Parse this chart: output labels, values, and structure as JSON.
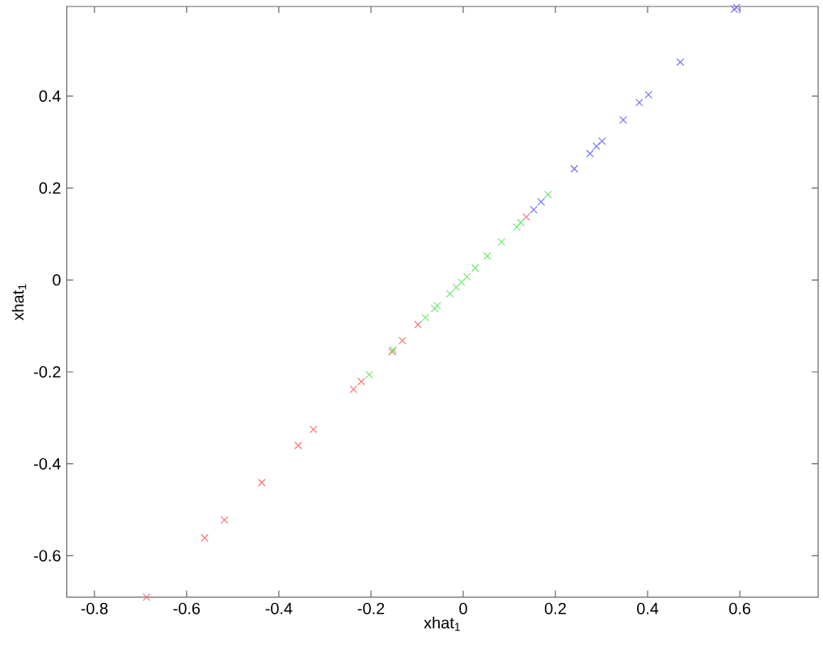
{
  "chart_data": {
    "type": "scatter",
    "xlabel": "xhat$_{1}$",
    "ylabel": "xhat$_{1}$",
    "xlim": [
      -0.86,
      0.77
    ],
    "ylim": [
      -0.69,
      0.595
    ],
    "xticks": [
      -0.8,
      -0.6,
      -0.4,
      -0.2,
      0,
      0.2,
      0.4,
      0.6
    ],
    "yticks": [
      -0.6,
      -0.4,
      -0.2,
      0,
      0.2,
      0.4
    ],
    "marker": "cross",
    "series": [
      {
        "color": "#ff7070",
        "x": [
          -0.687,
          -0.561,
          -0.518,
          -0.437,
          -0.358,
          -0.325,
          -0.238,
          -0.221,
          -0.154,
          -0.132,
          -0.098,
          0.137
        ],
        "values": [
          -0.69,
          -0.561,
          -0.522,
          -0.441,
          -0.36,
          -0.325,
          -0.238,
          -0.221,
          -0.156,
          -0.132,
          -0.097,
          0.137
        ]
      },
      {
        "color": "#70e870",
        "x": [
          -0.204,
          -0.152,
          -0.082,
          -0.062,
          -0.056,
          -0.029,
          -0.015,
          -0.004,
          0.008,
          0.026,
          0.052,
          0.083,
          0.116,
          0.125,
          0.184
        ],
        "values": [
          -0.206,
          -0.152,
          -0.082,
          -0.062,
          -0.056,
          -0.03,
          -0.016,
          -0.005,
          0.007,
          0.026,
          0.052,
          0.083,
          0.115,
          0.125,
          0.186
        ]
      },
      {
        "color": "#7070ff",
        "x": [
          0.153,
          0.169,
          0.241,
          0.275,
          0.289,
          0.301,
          0.347,
          0.382,
          0.402,
          0.471,
          0.588,
          0.593
        ],
        "values": [
          0.153,
          0.17,
          0.242,
          0.275,
          0.291,
          0.302,
          0.348,
          0.386,
          0.403,
          0.474,
          0.589,
          0.593
        ]
      }
    ]
  }
}
